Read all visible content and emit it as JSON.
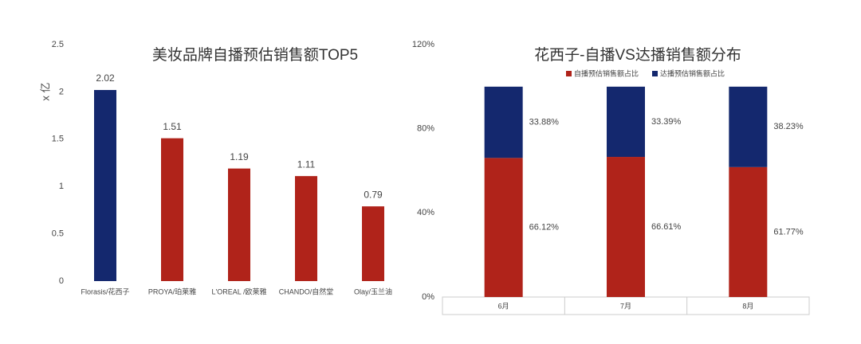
{
  "chart_data": [
    {
      "type": "bar",
      "title": "美妆品牌自播预估销售额TOP5",
      "y_label": "x 亿",
      "categories": [
        "Florasis/花西子",
        "PROYA/珀莱雅",
        "L'OREAL /欧莱雅",
        "CHANDO/自然堂",
        "Olay/玉兰油"
      ],
      "values": [
        2.02,
        1.51,
        1.19,
        1.11,
        0.79
      ],
      "colors": [
        "#14286e",
        "#b0231a",
        "#b0231a",
        "#b0231a",
        "#b0231a"
      ],
      "ylim": [
        0,
        2.5
      ],
      "yticks": [
        0,
        0.5,
        1,
        1.5,
        2,
        2.5
      ],
      "grid": false
    },
    {
      "type": "stacked_bar",
      "title": "花西子-自播VS达播销售额分布",
      "categories": [
        "6月",
        "7月",
        "8月"
      ],
      "series": [
        {
          "name": "自播预估销售额占比",
          "color": "#b0231a",
          "values": [
            66.12,
            66.61,
            61.77
          ],
          "value_labels": [
            "66.12%",
            "66.61%",
            "61.77%"
          ]
        },
        {
          "name": "达播预估销售额占比",
          "color": "#14286e",
          "values": [
            33.88,
            33.39,
            38.23
          ],
          "value_labels": [
            "33.88%",
            "33.39%",
            "38.23%"
          ]
        }
      ],
      "ylim": [
        0,
        120
      ],
      "yticks": [
        {
          "value": 0,
          "label": "0%"
        },
        {
          "value": 40,
          "label": "40%"
        },
        {
          "value": 80,
          "label": "80%"
        },
        {
          "value": 120,
          "label": "120%"
        }
      ],
      "grid": false,
      "legend": "top"
    }
  ]
}
